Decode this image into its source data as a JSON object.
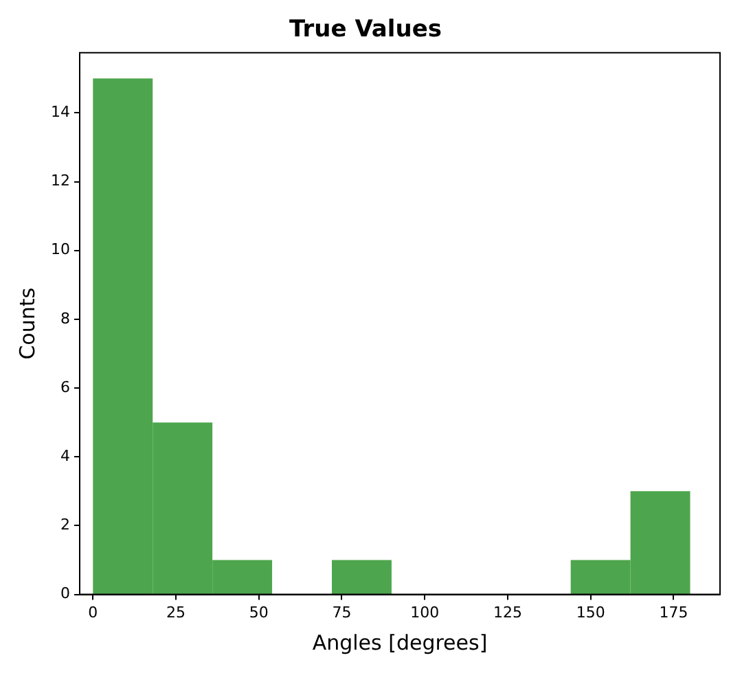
{
  "chart_data": {
    "type": "histogram",
    "title": "True Values",
    "xlabel": "Angles [degrees]",
    "ylabel": "Counts",
    "bins": [
      0,
      18,
      36,
      54,
      72,
      90,
      108,
      126,
      144,
      162,
      180
    ],
    "values": [
      15,
      5,
      1,
      0,
      1,
      0,
      0,
      0,
      1,
      3
    ],
    "color": "#4da64d",
    "xlim": [
      -4,
      189
    ],
    "xticks": [
      0,
      25,
      50,
      75,
      100,
      125,
      150,
      175
    ],
    "ylim": [
      0,
      15.75
    ],
    "yticks": [
      0,
      2,
      4,
      6,
      8,
      10,
      12,
      14
    ],
    "grid": false,
    "legend": false
  }
}
